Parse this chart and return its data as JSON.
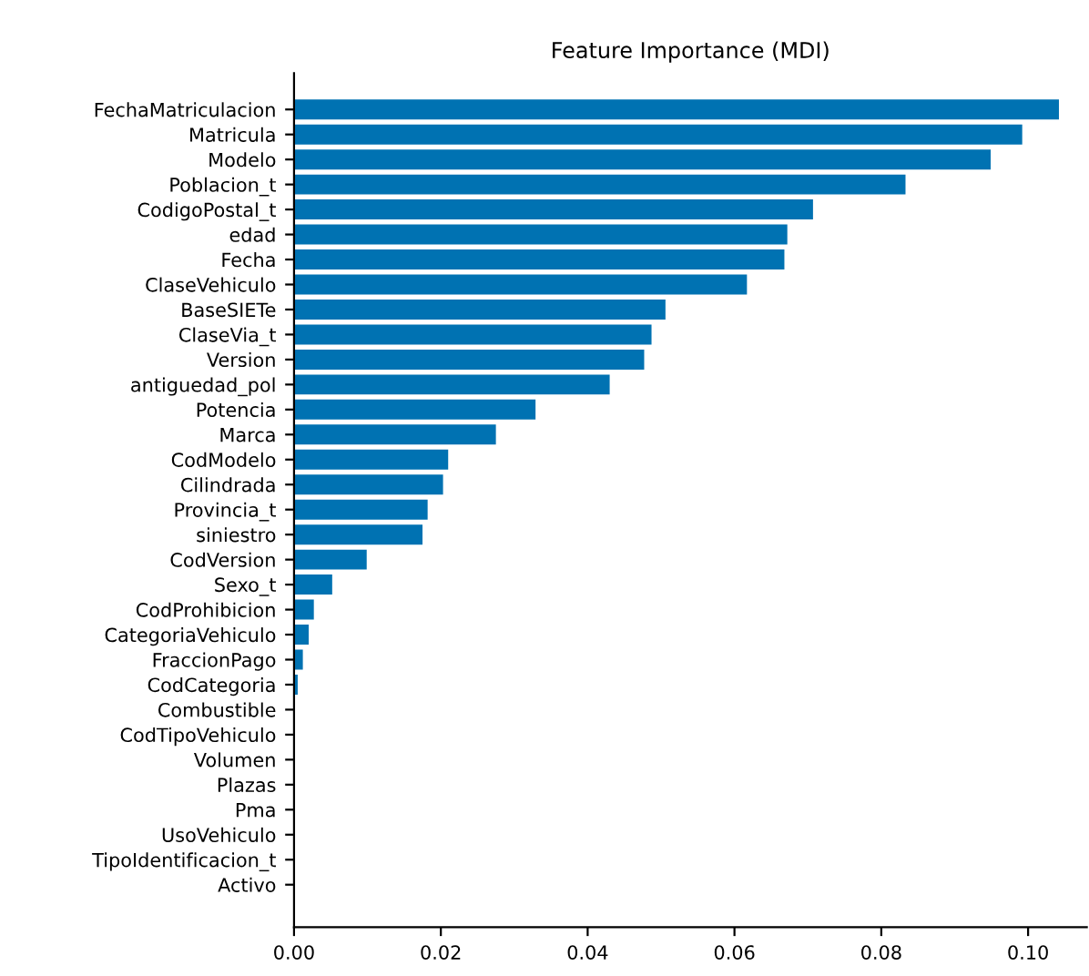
{
  "chart_data": {
    "type": "bar",
    "orientation": "horizontal",
    "title": "Feature Importance (MDI)",
    "categories": [
      "FechaMatriculacion",
      "Matricula",
      "Modelo",
      "Poblacion_t",
      "CodigoPostal_t",
      "edad",
      "Fecha",
      "ClaseVehiculo",
      "BaseSIETe",
      "ClaseVia_t",
      "Version",
      "antiguedad_pol",
      "Potencia",
      "Marca",
      "CodModelo",
      "Cilindrada",
      "Provincia_t",
      "siniestro",
      "CodVersion",
      "Sexo_t",
      "CodProhibicion",
      "CategoriaVehiculo",
      "FraccionPago",
      "CodCategoria",
      "Combustible",
      "CodTipoVehiculo",
      "Volumen",
      "Plazas",
      "Pma",
      "UsoVehiculo",
      "TipoIdentificacion_t",
      "Activo"
    ],
    "values": [
      0.1042,
      0.0992,
      0.0949,
      0.0833,
      0.0707,
      0.0672,
      0.0668,
      0.0617,
      0.0506,
      0.0487,
      0.0477,
      0.043,
      0.0329,
      0.0275,
      0.021,
      0.0203,
      0.0182,
      0.0175,
      0.0099,
      0.0052,
      0.0027,
      0.002,
      0.0012,
      0.0005,
      0,
      0,
      0,
      0,
      0,
      0,
      0,
      0
    ],
    "color": "#0072b2",
    "xlim": [
      0,
      0.108
    ],
    "xticks": [
      {
        "value": 0,
        "label": "0.00"
      },
      {
        "value": 0.02,
        "label": "0.02"
      },
      {
        "value": 0.04,
        "label": "0.04"
      },
      {
        "value": 0.06,
        "label": "0.06"
      },
      {
        "value": 0.08,
        "label": "0.08"
      },
      {
        "value": 0.1,
        "label": "0.10"
      }
    ],
    "grid": false,
    "legend": false
  }
}
